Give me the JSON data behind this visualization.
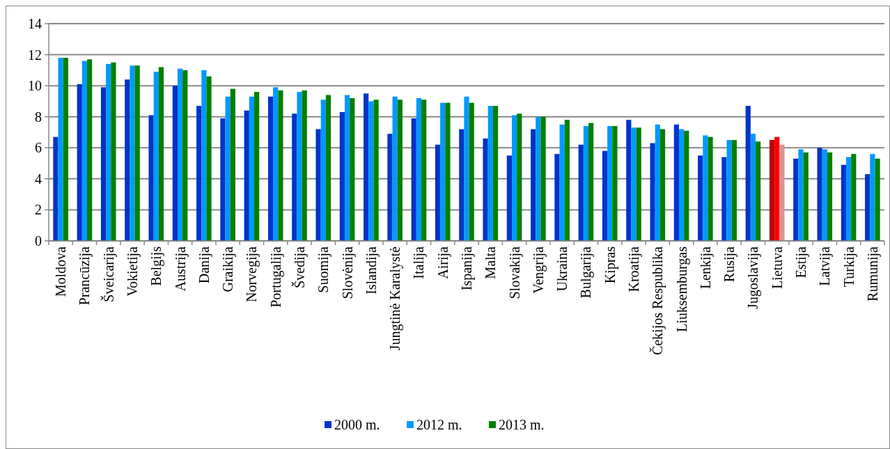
{
  "chart_data": {
    "type": "bar",
    "categories": [
      "Moldova",
      "Prancūzija",
      "Šveicarija",
      "Vokietija",
      "Belgijs",
      "Austrija",
      "Danija",
      "Graikija",
      "Norvegija",
      "Portugalija",
      "Švedija",
      "Suomija",
      "Slovėnija",
      "Islandija",
      "Jungtinė Karalystė",
      "Italija",
      "Airija",
      "Ispanija",
      "Malta",
      "Slovakija",
      "Vengrija",
      "Ukraina",
      "Bulgarija",
      "Kipras",
      "Kroatija",
      "Čekijos Respublika",
      "Liuksemburgas",
      "Lenkija",
      "Rusija",
      "Jugoslavija",
      "Lietuva",
      "Estija",
      "Latvija",
      "Turkija",
      "Rumunija"
    ],
    "series": [
      {
        "name": "2000 m.",
        "color": "#0033cc",
        "colors": [
          "#0033cc",
          "#0033cc",
          "#0033cc",
          "#0033cc",
          "#0033cc",
          "#0033cc",
          "#0033cc",
          "#0033cc",
          "#0033cc",
          "#0033cc",
          "#0033cc",
          "#0033cc",
          "#0033cc",
          "#0033cc",
          "#0033cc",
          "#0033cc",
          "#0033cc",
          "#0033cc",
          "#0033cc",
          "#0033cc",
          "#0033cc",
          "#0033cc",
          "#0033cc",
          "#0033cc",
          "#0033cc",
          "#0033cc",
          "#0033cc",
          "#0033cc",
          "#0033cc",
          "#0033cc",
          "#c00000",
          "#0033cc",
          "#0033cc",
          "#0033cc",
          "#0033cc"
        ],
        "values": [
          6.7,
          10.1,
          9.9,
          10.4,
          8.1,
          10.0,
          8.7,
          7.9,
          8.4,
          9.3,
          8.2,
          7.2,
          8.3,
          9.5,
          6.9,
          7.9,
          6.2,
          7.2,
          6.6,
          5.5,
          7.2,
          5.6,
          6.2,
          5.8,
          7.8,
          6.3,
          7.5,
          5.5,
          5.4,
          8.7,
          6.5,
          5.3,
          6.0,
          4.9,
          4.3
        ]
      },
      {
        "name": "2012 m.",
        "color": "#0099ff",
        "colors": [
          "#0099ff",
          "#0099ff",
          "#0099ff",
          "#0099ff",
          "#0099ff",
          "#0099ff",
          "#0099ff",
          "#0099ff",
          "#0099ff",
          "#0099ff",
          "#0099ff",
          "#0099ff",
          "#0099ff",
          "#0099ff",
          "#0099ff",
          "#0099ff",
          "#0099ff",
          "#0099ff",
          "#0099ff",
          "#0099ff",
          "#0099ff",
          "#0099ff",
          "#0099ff",
          "#0099ff",
          "#0099ff",
          "#0099ff",
          "#0099ff",
          "#0099ff",
          "#0099ff",
          "#0099ff",
          "#ff0000",
          "#0099ff",
          "#0099ff",
          "#0099ff",
          "#0099ff"
        ],
        "values": [
          11.8,
          11.6,
          11.4,
          11.3,
          10.9,
          11.1,
          11.0,
          9.3,
          9.3,
          9.9,
          9.6,
          9.1,
          9.4,
          9.0,
          9.3,
          9.2,
          8.9,
          9.3,
          8.7,
          8.1,
          8.0,
          7.5,
          7.4,
          7.4,
          7.3,
          7.5,
          7.2,
          6.8,
          6.5,
          6.9,
          6.7,
          5.9,
          5.9,
          5.4,
          5.6
        ]
      },
      {
        "name": "2013 m.",
        "color": "#008000",
        "colors": [
          "#008000",
          "#008000",
          "#008000",
          "#008000",
          "#008000",
          "#008000",
          "#008000",
          "#008000",
          "#008000",
          "#008000",
          "#008000",
          "#008000",
          "#008000",
          "#008000",
          "#008000",
          "#008000",
          "#008000",
          "#008000",
          "#008000",
          "#008000",
          "#008000",
          "#008000",
          "#008000",
          "#008000",
          "#008000",
          "#008000",
          "#008000",
          "#008000",
          "#008000",
          "#008000",
          "#d99594",
          "#008000",
          "#008000",
          "#008000",
          "#008000"
        ],
        "values": [
          11.8,
          11.7,
          11.5,
          11.3,
          11.2,
          11.0,
          10.6,
          9.8,
          9.6,
          9.7,
          9.7,
          9.4,
          9.2,
          9.1,
          9.1,
          9.1,
          8.9,
          8.9,
          8.7,
          8.2,
          8.0,
          7.8,
          7.6,
          7.4,
          7.3,
          7.2,
          7.1,
          6.7,
          6.5,
          6.4,
          6.2,
          5.7,
          5.7,
          5.6,
          5.3
        ]
      }
    ],
    "ylim": [
      0,
      14
    ],
    "yticks": [
      0,
      2,
      4,
      6,
      8,
      10,
      12,
      14
    ],
    "grid": "y",
    "legend": "bottom"
  }
}
